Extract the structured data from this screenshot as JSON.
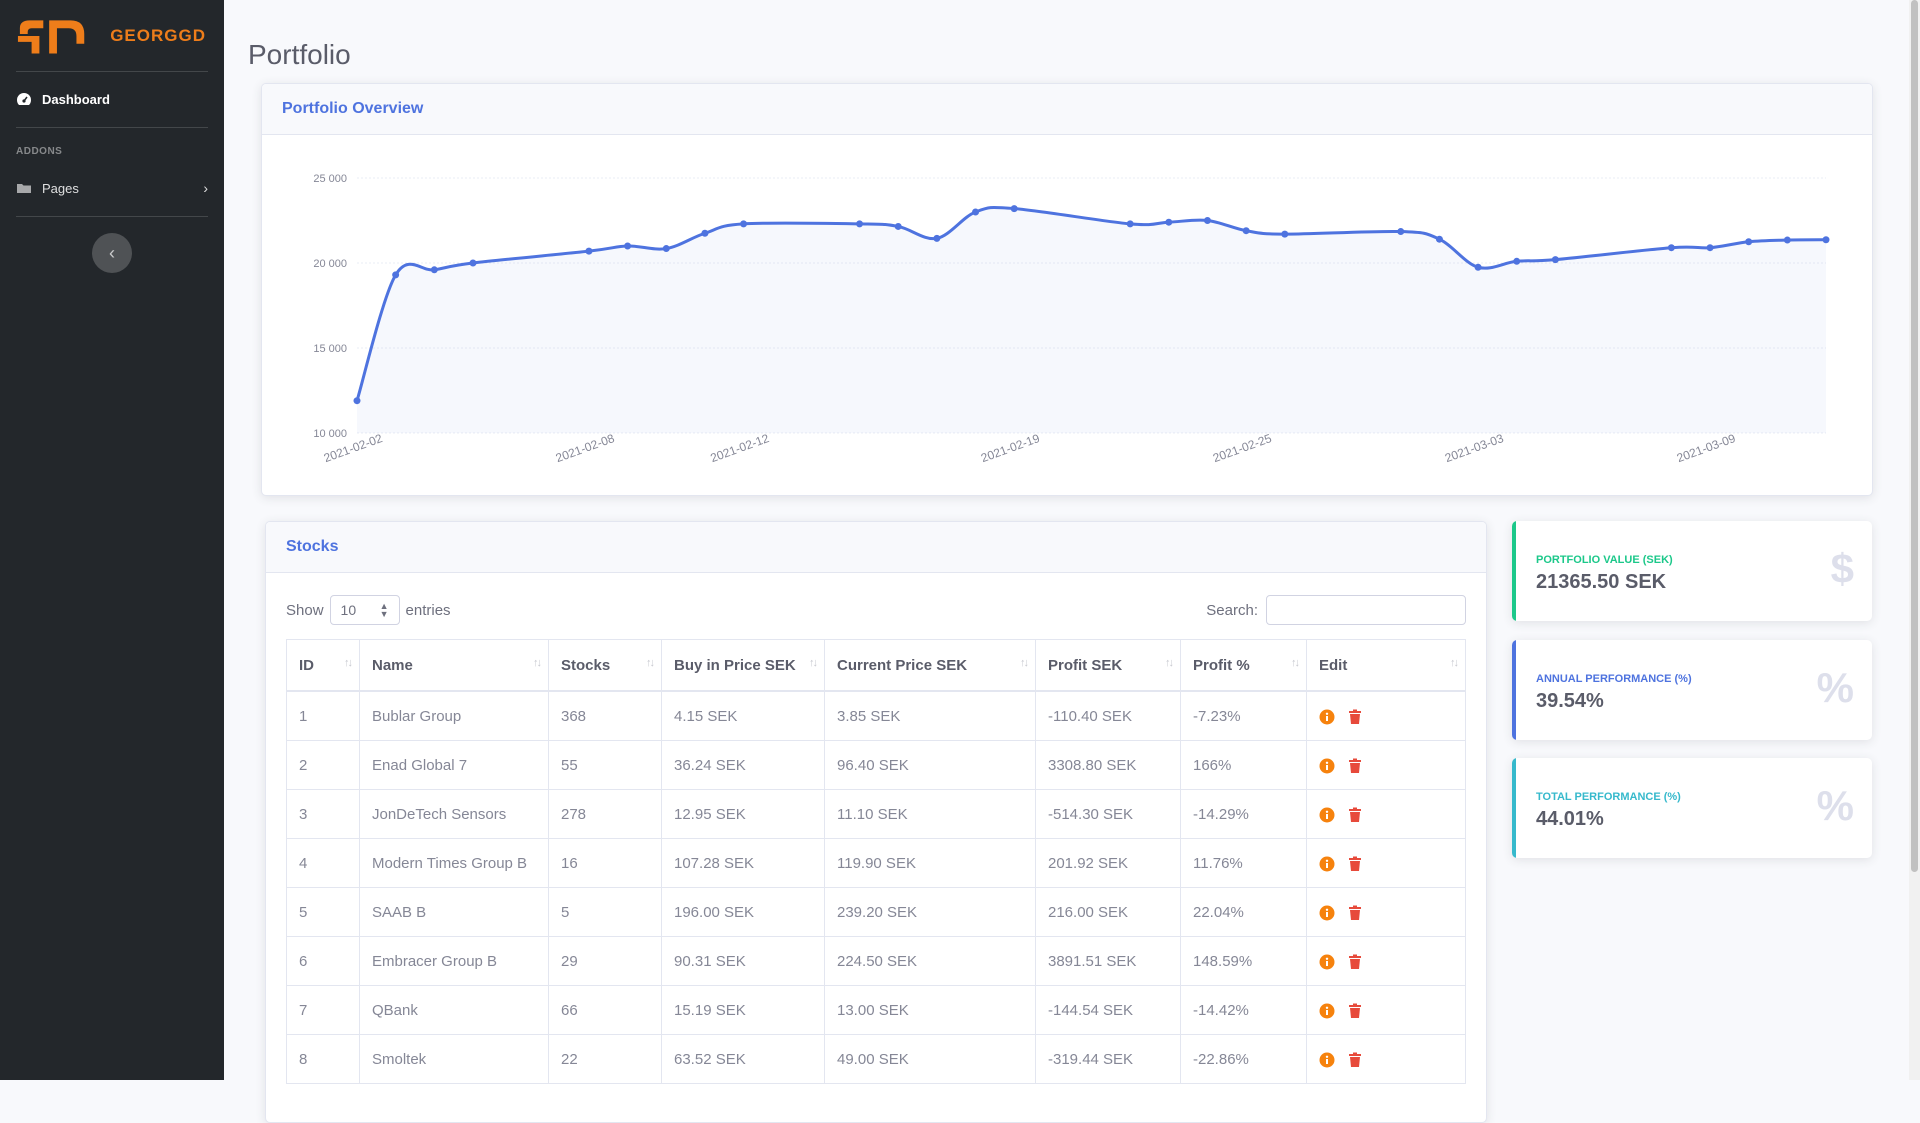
{
  "brand": {
    "name": "GEORGGD",
    "color": "#ee7d1a"
  },
  "sidebar": {
    "dashboard_label": "Dashboard",
    "heading": "ADDONS",
    "pages_label": "Pages",
    "icons": {
      "dashboard": "tachometer-icon",
      "pages": "folder-icon",
      "toggle": "chevron-left-icon"
    }
  },
  "page": {
    "title": "Portfolio"
  },
  "chart_card": {
    "title": "Portfolio Overview"
  },
  "chart_data": {
    "type": "area",
    "x": [
      "2021-02-02",
      "2021-02-03",
      "2021-02-04",
      "2021-02-05",
      "2021-02-08",
      "2021-02-09",
      "2021-02-10",
      "2021-02-11",
      "2021-02-12",
      "2021-02-15",
      "2021-02-16",
      "2021-02-17",
      "2021-02-18",
      "2021-02-19",
      "2021-02-22",
      "2021-02-23",
      "2021-02-24",
      "2021-02-25",
      "2021-02-26",
      "2021-03-01",
      "2021-03-02",
      "2021-03-03",
      "2021-03-04",
      "2021-03-05",
      "2021-03-08",
      "2021-03-09",
      "2021-03-10",
      "2021-03-11",
      "2021-03-12"
    ],
    "y": [
      11900,
      19300,
      19600,
      20000,
      20700,
      21000,
      20850,
      21750,
      22300,
      22300,
      22150,
      21450,
      23000,
      23200,
      22300,
      22400,
      22500,
      21900,
      21700,
      21850,
      21400,
      19750,
      20100,
      20200,
      20900,
      20900,
      21250,
      21350,
      21365.5
    ],
    "xtick_labels": [
      "2021-02-02",
      "2021-02-08",
      "2021-02-12",
      "2021-02-19",
      "2021-02-25",
      "2021-03-03",
      "2021-03-09"
    ],
    "ytick_labels": [
      "10 000",
      "15 000",
      "20 000",
      "25 000"
    ],
    "yticks": [
      10000,
      15000,
      20000,
      25000
    ],
    "ylim": [
      10000,
      25000
    ],
    "grid": true,
    "legend": "none",
    "color": "#4e73df"
  },
  "stocks": {
    "title": "Stocks",
    "show_label": "Show",
    "entries_value": "10",
    "entries_label": "entries",
    "search_label": "Search:",
    "columns": [
      "ID",
      "Name",
      "Stocks",
      "Buy in Price SEK",
      "Current Price SEK",
      "Profit SEK",
      "Profit %",
      "Edit"
    ],
    "rows": [
      [
        "1",
        "Bublar Group",
        "368",
        "4.15 SEK",
        "3.85 SEK",
        "-110.40 SEK",
        "-7.23%"
      ],
      [
        "2",
        "Enad Global 7",
        "55",
        "36.24 SEK",
        "96.40 SEK",
        "3308.80 SEK",
        "166%"
      ],
      [
        "3",
        "JonDeTech Sensors",
        "278",
        "12.95 SEK",
        "11.10 SEK",
        "-514.30 SEK",
        "-14.29%"
      ],
      [
        "4",
        "Modern Times Group B",
        "16",
        "107.28 SEK",
        "119.90 SEK",
        "201.92 SEK",
        "11.76%"
      ],
      [
        "5",
        "SAAB B",
        "5",
        "196.00 SEK",
        "239.20 SEK",
        "216.00 SEK",
        "22.04%"
      ],
      [
        "6",
        "Embracer Group B",
        "29",
        "90.31 SEK",
        "224.50 SEK",
        "3891.51 SEK",
        "148.59%"
      ],
      [
        "7",
        "QBank",
        "66",
        "15.19 SEK",
        "13.00 SEK",
        "-144.54 SEK",
        "-14.42%"
      ],
      [
        "8",
        "Smoltek",
        "22",
        "63.52 SEK",
        "49.00 SEK",
        "-319.44 SEK",
        "-22.86%"
      ]
    ],
    "icons": {
      "info": "info-circle-icon",
      "delete": "trash-icon"
    }
  },
  "stats": [
    {
      "label": "PORTFOLIO VALUE (SEK)",
      "value": "21365.50 SEK",
      "symbol": "$",
      "color": "#1cc88a",
      "icon": "dollar-sign-icon"
    },
    {
      "label": "ANNUAL PERFORMANCE (%)",
      "value": "39.54%",
      "symbol": "%",
      "color": "#4e73df",
      "icon": "percent-icon"
    },
    {
      "label": "TOTAL PERFORMANCE (%)",
      "value": "44.01%",
      "symbol": "%",
      "color": "#36b9cc",
      "icon": "percent-icon"
    }
  ]
}
